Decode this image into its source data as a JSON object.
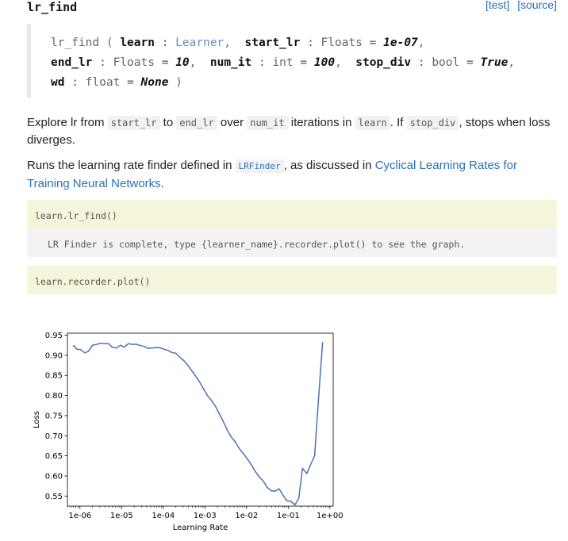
{
  "header": {
    "title": "lr_find",
    "test_link": "[test]",
    "source_link": "[source]"
  },
  "signature": {
    "func_name": "lr_find",
    "open_paren": "(",
    "close_paren": ")",
    "params": [
      {
        "name": "learn",
        "type": "Learner",
        "default": ""
      },
      {
        "name": "start_lr",
        "type": "Floats",
        "default": "1e-07"
      },
      {
        "name": "end_lr",
        "type": "Floats",
        "default": "10"
      },
      {
        "name": "num_it",
        "type": "int",
        "default": "100"
      },
      {
        "name": "stop_div",
        "type": "bool",
        "default": "True"
      },
      {
        "name": "wd",
        "type": "float",
        "default": "None"
      }
    ]
  },
  "description": {
    "p1_t1": "Explore lr from ",
    "p1_c1": "start_lr",
    "p1_t2": " to ",
    "p1_c2": "end_lr",
    "p1_t3": " over ",
    "p1_c3": "num_it",
    "p1_t4": " iterations in ",
    "p1_c4": "learn",
    "p1_t5": ". If ",
    "p1_c5": "stop_div",
    "p1_t6": ", stops when loss diverges.",
    "p2_t1": "Runs the learning rate finder defined in ",
    "p2_c1": "LRFinder",
    "p2_t2": ", as discussed in ",
    "p2_link": "Cyclical Learning Rates for Training Neural Networks",
    "p2_t3": "."
  },
  "cells": {
    "input1": "learn.lr_find()",
    "output1": "LR Finder is complete, type {learner_name}.recorder.plot() to see the graph.",
    "input2": "learn.recorder.plot()"
  },
  "chart_data": {
    "type": "line",
    "xscale": "log",
    "xlabel": "Learning Rate",
    "ylabel": "Loss",
    "xlim": [
      5e-07,
      1.2
    ],
    "ylim": [
      0.525,
      0.955
    ],
    "xticks": [
      "1e-06",
      "1e-05",
      "1e-04",
      "1e-03",
      "1e-02",
      "1e-01",
      "1e+00"
    ],
    "yticks": [
      "0.55",
      "0.60",
      "0.65",
      "0.70",
      "0.75",
      "0.80",
      "0.85",
      "0.90",
      "0.95"
    ],
    "line_color": "#4c72b0",
    "series": [
      {
        "x": [
          6.9e-07,
          8.5e-07,
          1.05e-06,
          1.3e-06,
          1.6e-06,
          2e-06,
          2.5e-06,
          3.1e-06,
          3.9e-06,
          4.8e-06,
          6e-06,
          7.5e-06,
          9.3e-06,
          1.15e-05,
          1.45e-05,
          1.8e-05,
          2.2e-05,
          2.8e-05,
          3.5e-05,
          4.3e-05,
          5.4e-05,
          6.7e-05,
          8.3e-05,
          0.000105,
          0.00013,
          0.00016,
          0.0002,
          0.00025,
          0.00031,
          0.00039,
          0.00048,
          0.0006,
          0.00075,
          0.00093,
          0.00115,
          0.00145,
          0.0018,
          0.0022,
          0.0028,
          0.0035,
          0.0043,
          0.0054,
          0.0067,
          0.0083,
          0.0105,
          0.013,
          0.016,
          0.02,
          0.025,
          0.031,
          0.039,
          0.048,
          0.06,
          0.075,
          0.093,
          0.115,
          0.145,
          0.18,
          0.22,
          0.28,
          0.35,
          0.43,
          0.54,
          0.67
        ],
        "y": [
          0.925,
          0.915,
          0.914,
          0.906,
          0.91,
          0.925,
          0.927,
          0.93,
          0.929,
          0.929,
          0.92,
          0.918,
          0.925,
          0.92,
          0.929,
          0.927,
          0.928,
          0.924,
          0.922,
          0.917,
          0.918,
          0.919,
          0.919,
          0.915,
          0.912,
          0.907,
          0.905,
          0.895,
          0.887,
          0.875,
          0.862,
          0.848,
          0.833,
          0.816,
          0.8,
          0.787,
          0.773,
          0.755,
          0.734,
          0.712,
          0.697,
          0.684,
          0.668,
          0.656,
          0.642,
          0.628,
          0.612,
          0.598,
          0.588,
          0.572,
          0.563,
          0.562,
          0.568,
          0.552,
          0.538,
          0.537,
          0.528,
          0.545,
          0.619,
          0.606,
          0.63,
          0.65,
          0.8,
          0.933
        ]
      }
    ]
  }
}
